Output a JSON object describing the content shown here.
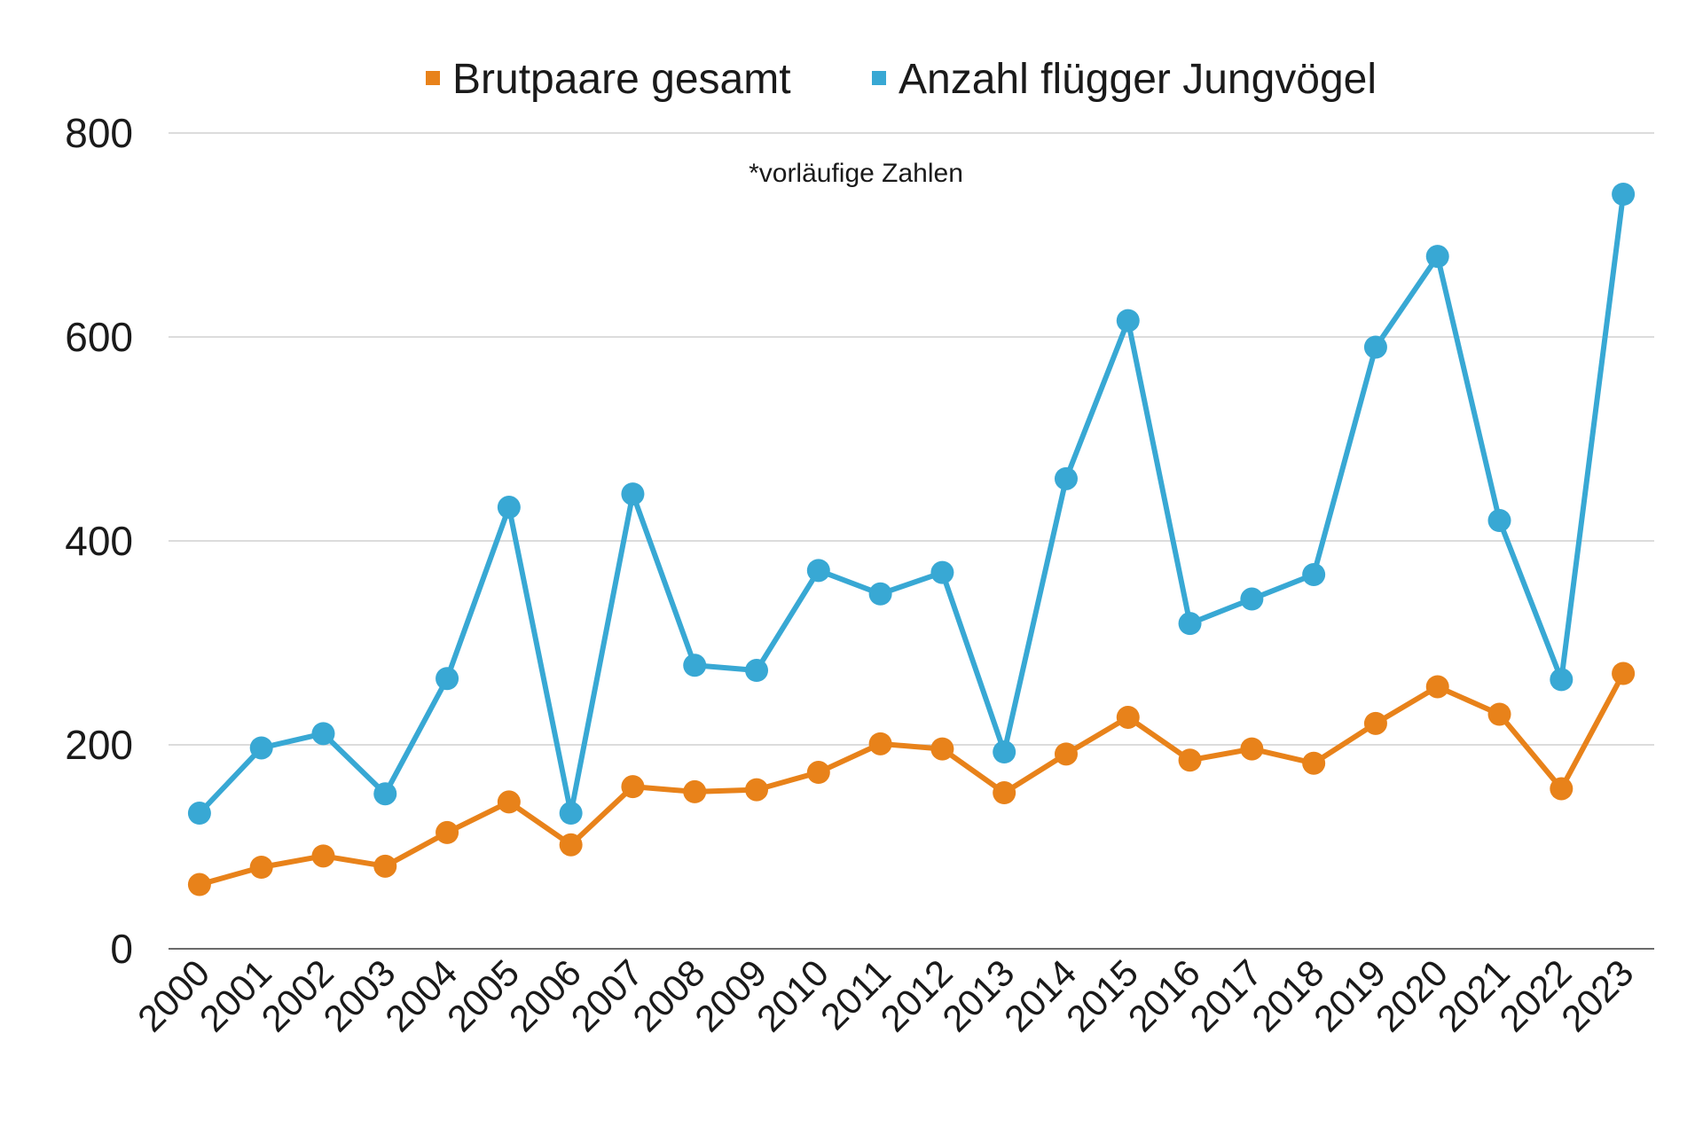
{
  "chart_data": {
    "type": "line",
    "title": "",
    "xlabel": "",
    "ylabel": "",
    "ylim": [
      0,
      800
    ],
    "yticks": [
      0,
      200,
      400,
      600,
      800
    ],
    "grid": true,
    "legend_position": "top-center",
    "annotation": "*vorläufige Zahlen",
    "categories": [
      "2000",
      "2001",
      "2002",
      "2003",
      "2004",
      "2005",
      "2006",
      "2007",
      "2008",
      "2009",
      "2010",
      "2011",
      "2012",
      "2013",
      "2014",
      "2015",
      "2016",
      "2017",
      "2018",
      "2019",
      "2020",
      "2021",
      "2022",
      "2023"
    ],
    "series": [
      {
        "name": "Brutpaare gesamt",
        "color": "#e8821a",
        "values": [
          63,
          80,
          91,
          81,
          114,
          144,
          102,
          159,
          154,
          156,
          173,
          201,
          196,
          153,
          191,
          227,
          185,
          196,
          182,
          221,
          257,
          230,
          157,
          270
        ]
      },
      {
        "name": "Anzahl flügger Jungvögel",
        "color": "#38a8d4",
        "values": [
          133,
          197,
          211,
          152,
          265,
          433,
          133,
          446,
          278,
          273,
          371,
          348,
          369,
          193,
          461,
          616,
          319,
          343,
          367,
          590,
          679,
          420,
          264,
          740
        ]
      }
    ]
  }
}
